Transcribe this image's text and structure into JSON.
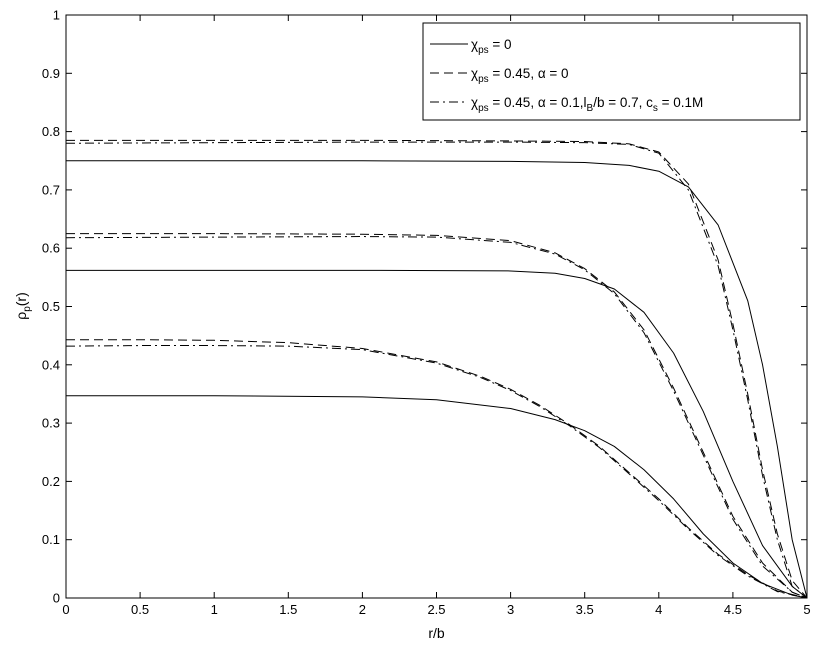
{
  "chart_data": {
    "type": "line",
    "title": "",
    "xlabel": "r/b",
    "ylabel": "ρp(r)",
    "ylabel_main": "ρ",
    "ylabel_sub": "p",
    "ylabel_tail": "(r)",
    "xlim": [
      0,
      5
    ],
    "ylim": [
      0,
      1
    ],
    "xticks": [
      0,
      0.5,
      1,
      1.5,
      2,
      2.5,
      3,
      3.5,
      4,
      4.5,
      5
    ],
    "yticks": [
      0,
      0.1,
      0.2,
      0.3,
      0.4,
      0.5,
      0.6,
      0.7,
      0.8,
      0.9,
      1
    ],
    "xtick_labels": [
      "0",
      "0.5",
      "1",
      "1.5",
      "2",
      "2.5",
      "3",
      "3.5",
      "4",
      "4.5",
      "5"
    ],
    "ytick_labels": [
      "0",
      "0.1",
      "0.2",
      "0.3",
      "0.4",
      "0.5",
      "0.6",
      "0.7",
      "0.8",
      "0.9",
      "1"
    ],
    "grid": false,
    "legend_position": "top-right",
    "legend": [
      {
        "style": "solid",
        "parts": [
          {
            "t": "χ",
            "sub": false
          },
          {
            "t": "ps",
            "sub": true
          },
          {
            "t": " = 0",
            "sub": false
          }
        ]
      },
      {
        "style": "dashed",
        "parts": [
          {
            "t": "χ",
            "sub": false
          },
          {
            "t": "ps",
            "sub": true
          },
          {
            "t": " = 0.45, α = 0",
            "sub": false
          }
        ]
      },
      {
        "style": "dashdot",
        "parts": [
          {
            "t": "χ",
            "sub": false
          },
          {
            "t": "ps",
            "sub": true
          },
          {
            "t": " = 0.45, α = 0.1,l",
            "sub": false
          },
          {
            "t": "B",
            "sub": true
          },
          {
            "t": "/b = 0.7, c",
            "sub": false
          },
          {
            "t": "s",
            "sub": true
          },
          {
            "t": " = 0.1M",
            "sub": false
          }
        ]
      }
    ],
    "series": [
      {
        "style": "solid",
        "x": [
          0,
          1,
          2,
          3,
          3.5,
          3.8,
          4.0,
          4.2,
          4.4,
          4.6,
          4.7,
          4.8,
          4.9,
          5.0
        ],
        "y": [
          0.75,
          0.75,
          0.75,
          0.749,
          0.747,
          0.742,
          0.732,
          0.705,
          0.64,
          0.51,
          0.4,
          0.26,
          0.1,
          0.0
        ]
      },
      {
        "style": "dashed",
        "x": [
          0,
          1,
          2,
          3,
          3.5,
          3.8,
          4.0,
          4.2,
          4.4,
          4.5,
          4.6,
          4.7,
          4.8,
          4.9,
          5.0
        ],
        "y": [
          0.785,
          0.785,
          0.785,
          0.784,
          0.783,
          0.779,
          0.765,
          0.71,
          0.58,
          0.47,
          0.35,
          0.22,
          0.11,
          0.03,
          0.0
        ]
      },
      {
        "style": "dashdot",
        "x": [
          0,
          1,
          2,
          3,
          3.5,
          3.8,
          4.0,
          4.2,
          4.4,
          4.5,
          4.6,
          4.7,
          4.8,
          4.9,
          5.0
        ],
        "y": [
          0.78,
          0.781,
          0.782,
          0.782,
          0.781,
          0.778,
          0.763,
          0.7,
          0.57,
          0.46,
          0.34,
          0.21,
          0.1,
          0.02,
          0.0
        ]
      },
      {
        "style": "solid",
        "x": [
          0,
          1,
          2,
          3,
          3.3,
          3.5,
          3.7,
          3.9,
          4.1,
          4.3,
          4.5,
          4.7,
          4.9,
          5.0
        ],
        "y": [
          0.562,
          0.562,
          0.562,
          0.561,
          0.557,
          0.548,
          0.53,
          0.49,
          0.42,
          0.32,
          0.2,
          0.09,
          0.02,
          0.0
        ]
      },
      {
        "style": "dashed",
        "x": [
          0,
          1,
          2,
          2.5,
          3.0,
          3.3,
          3.5,
          3.7,
          3.9,
          4.1,
          4.3,
          4.5,
          4.7,
          4.9,
          5.0
        ],
        "y": [
          0.625,
          0.625,
          0.624,
          0.622,
          0.613,
          0.592,
          0.565,
          0.525,
          0.46,
          0.36,
          0.25,
          0.14,
          0.06,
          0.01,
          0.0
        ]
      },
      {
        "style": "dashdot",
        "x": [
          0,
          1,
          2,
          2.5,
          3.0,
          3.3,
          3.5,
          3.7,
          3.9,
          4.1,
          4.3,
          4.5,
          4.7,
          4.9,
          5.0
        ],
        "y": [
          0.618,
          0.619,
          0.62,
          0.619,
          0.61,
          0.59,
          0.563,
          0.522,
          0.455,
          0.355,
          0.245,
          0.135,
          0.055,
          0.01,
          0.0
        ]
      },
      {
        "style": "solid",
        "x": [
          0,
          1,
          2,
          2.5,
          3.0,
          3.3,
          3.5,
          3.7,
          3.9,
          4.1,
          4.3,
          4.5,
          4.7,
          4.9,
          5.0
        ],
        "y": [
          0.347,
          0.347,
          0.345,
          0.34,
          0.325,
          0.306,
          0.287,
          0.26,
          0.22,
          0.17,
          0.11,
          0.06,
          0.025,
          0.005,
          0.0
        ]
      },
      {
        "style": "dashed",
        "x": [
          0,
          0.5,
          1,
          1.5,
          2.0,
          2.5,
          2.8,
          3.0,
          3.2,
          3.4,
          3.6,
          3.8,
          4.0,
          4.2,
          4.4,
          4.6,
          4.8,
          5.0
        ],
        "y": [
          0.443,
          0.443,
          0.442,
          0.438,
          0.428,
          0.405,
          0.38,
          0.358,
          0.33,
          0.297,
          0.26,
          0.215,
          0.17,
          0.12,
          0.075,
          0.04,
          0.012,
          0.0
        ]
      },
      {
        "style": "dashdot",
        "x": [
          0,
          0.5,
          1,
          1.5,
          2.0,
          2.5,
          2.8,
          3.0,
          3.2,
          3.4,
          3.6,
          3.8,
          4.0,
          4.2,
          4.4,
          4.6,
          4.8,
          5.0
        ],
        "y": [
          0.432,
          0.433,
          0.433,
          0.432,
          0.426,
          0.403,
          0.378,
          0.356,
          0.328,
          0.295,
          0.258,
          0.213,
          0.167,
          0.118,
          0.073,
          0.038,
          0.011,
          0.0
        ]
      }
    ]
  }
}
